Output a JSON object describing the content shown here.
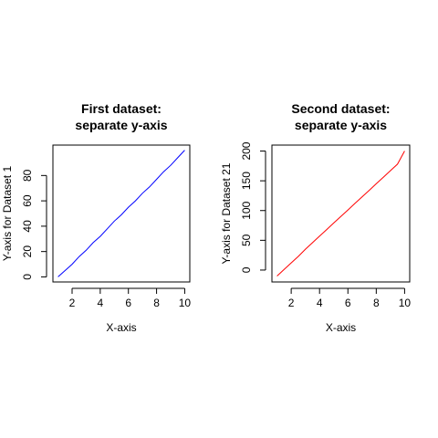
{
  "chart_data": [
    {
      "type": "line",
      "title_lines": [
        "First dataset:",
        "separate y-axis"
      ],
      "xlabel": "X-axis",
      "ylabel": "Y-axis for Dataset 1",
      "xlim": [
        0.64,
        10.36
      ],
      "ylim": [
        -4,
        104
      ],
      "x_ticks": [
        2,
        4,
        6,
        8,
        10
      ],
      "y_ticks": [
        0,
        20,
        40,
        60,
        80
      ],
      "grid": false,
      "series": [
        {
          "color": "#0000ff",
          "x": [
            1,
            1.5,
            2,
            2.5,
            3,
            3.5,
            4,
            4.5,
            5,
            5.5,
            6,
            6.5,
            7,
            7.5,
            8,
            8.5,
            9,
            9.5,
            10
          ],
          "y": [
            0,
            5,
            10,
            16,
            21,
            27,
            32,
            38,
            44,
            49,
            55,
            60,
            66,
            71,
            77,
            83,
            88,
            94,
            100
          ]
        }
      ]
    },
    {
      "type": "line",
      "title_lines": [
        "Second dataset:",
        "separate y-axis"
      ],
      "xlabel": "X-axis",
      "ylabel": "Y-axis for Dataset 21",
      "xlim": [
        0.64,
        10.36
      ],
      "ylim": [
        -20,
        210
      ],
      "x_ticks": [
        2,
        4,
        6,
        8,
        10
      ],
      "y_ticks": [
        0,
        50,
        100,
        150,
        200
      ],
      "grid": false,
      "series": [
        {
          "color": "#ff0000",
          "x": [
            1,
            1.5,
            2,
            2.5,
            3,
            3.5,
            4,
            4.5,
            5,
            5.5,
            6,
            6.5,
            7,
            7.5,
            8,
            8.5,
            9,
            9.5,
            10
          ],
          "y": [
            -10,
            1,
            12,
            23,
            35,
            46,
            57,
            68,
            79,
            90,
            101,
            112,
            123,
            134,
            145,
            156,
            167,
            178,
            200
          ]
        }
      ]
    }
  ]
}
